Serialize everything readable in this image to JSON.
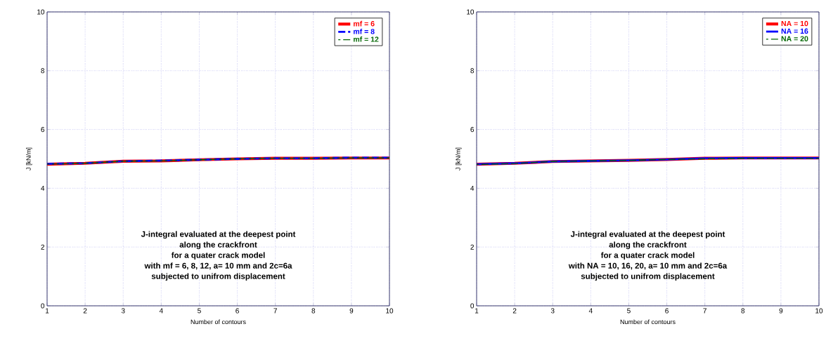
{
  "chart_data": [
    {
      "type": "line",
      "xlabel": "Number of contours",
      "ylabel": "J [kN/m]",
      "x": [
        1,
        2,
        3,
        4,
        5,
        6,
        7,
        8,
        9,
        10
      ],
      "xlim": [
        1,
        10
      ],
      "xticks": [
        1,
        2,
        3,
        4,
        5,
        6,
        7,
        8,
        9,
        10
      ],
      "ylim": [
        0,
        10
      ],
      "yticks": [
        0,
        2,
        4,
        6,
        8,
        10
      ],
      "grid": true,
      "legend": "top right",
      "marker": "none",
      "series": [
        {
          "name": "mf = 6",
          "color": "#ff0000",
          "line_style": "solid",
          "values": [
            4.82,
            4.85,
            4.92,
            4.93,
            4.97,
            5.0,
            5.02,
            5.02,
            5.03,
            5.03
          ]
        },
        {
          "name": "mf = 8",
          "color": "#0000ff",
          "line_style": "dashed",
          "values": [
            4.83,
            4.85,
            4.92,
            4.94,
            4.97,
            5.0,
            5.02,
            5.02,
            5.04,
            5.04
          ]
        },
        {
          "name": "mf = 12",
          "color": "#006600",
          "line_style": "dashed",
          "values": [
            4.82,
            4.85,
            4.92,
            4.93,
            4.97,
            5.0,
            5.02,
            5.02,
            5.03,
            5.03
          ]
        }
      ],
      "annotations": [
        "J-integral evaluated at the deepest point",
        "along the crackfront",
        "for a quater crack model",
        "with mf = 6, 8, 12, a= 10 mm and 2c=6a",
        "subjected to unifrom displacement"
      ]
    },
    {
      "type": "line",
      "xlabel": "Number of contours",
      "ylabel": "J [kN/m]",
      "x": [
        1,
        2,
        3,
        4,
        5,
        6,
        7,
        8,
        9,
        10
      ],
      "xlim": [
        1,
        10
      ],
      "xticks": [
        1,
        2,
        3,
        4,
        5,
        6,
        7,
        8,
        9,
        10
      ],
      "ylim": [
        0,
        10
      ],
      "yticks": [
        0,
        2,
        4,
        6,
        8,
        10
      ],
      "grid": true,
      "legend": "top right",
      "marker": "none",
      "series": [
        {
          "name": "NA = 10",
          "color": "#ff0000",
          "line_style": "solid",
          "values": [
            4.82,
            4.85,
            4.91,
            4.93,
            4.95,
            4.98,
            5.02,
            5.03,
            5.03,
            5.03
          ]
        },
        {
          "name": "NA = 16",
          "color": "#0000ff",
          "line_style": "solid",
          "values": [
            4.82,
            4.85,
            4.91,
            4.93,
            4.95,
            4.98,
            5.02,
            5.03,
            5.03,
            5.03
          ]
        },
        {
          "name": "NA = 20",
          "color": "#006600",
          "line_style": "dashed",
          "values": [
            4.81,
            4.84,
            4.91,
            4.93,
            4.95,
            4.98,
            5.0,
            5.02,
            5.02,
            5.02
          ]
        }
      ],
      "annotations": [
        "J-integral evaluated at the deepest point",
        "along the crackfront",
        "for a quater crack model",
        "with NA = 10, 16, 20, a= 10 mm and 2c=6a",
        "subjected to unifrom displacement"
      ]
    }
  ]
}
